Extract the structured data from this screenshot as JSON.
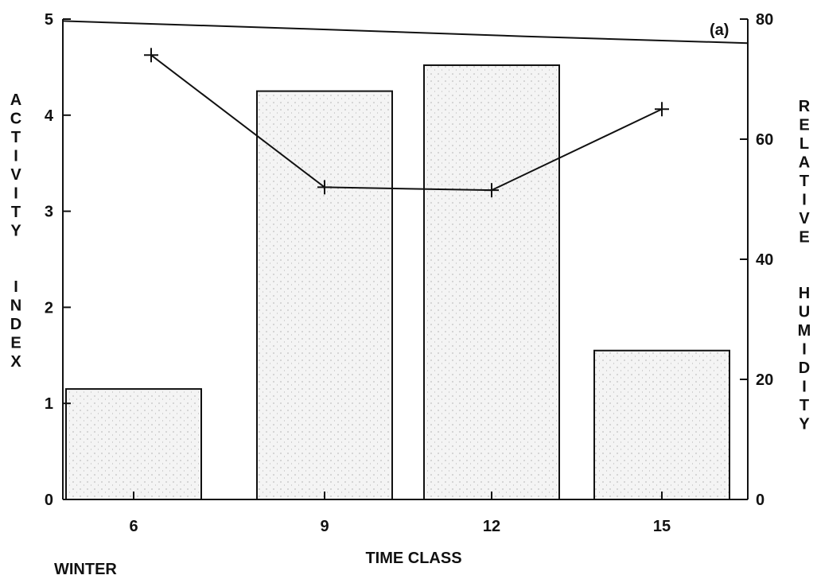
{
  "chart_data": {
    "type": "bar",
    "panel_label": "(a)",
    "season_label": "WINTER",
    "categories": [
      "6",
      "9",
      "12",
      "15"
    ],
    "xlabel": "TIME CLASS",
    "ylabel": "ACTIVITY INDEX",
    "ylabel_words": [
      "ACTIVITY",
      "INDEX"
    ],
    "y2label": "RELATIVE HUMIDITY",
    "y2label_words": [
      "RELATIVE",
      "HUMIDITY"
    ],
    "ylim": [
      0,
      5
    ],
    "yticks": [
      "0",
      "1",
      "2",
      "3",
      "4",
      "5"
    ],
    "y2lim": [
      0,
      80
    ],
    "y2ticks": [
      "0",
      "20",
      "40",
      "60",
      "80"
    ],
    "series": [
      {
        "type": "bar",
        "axis": "left",
        "values": [
          1.15,
          4.25,
          4.52,
          1.55
        ],
        "color": "#f4f4f4"
      },
      {
        "type": "line",
        "axis": "right",
        "marker": "plus",
        "values": [
          74,
          52,
          51.5,
          65
        ],
        "color": "#111111"
      },
      {
        "type": "line",
        "axis": "left",
        "values": [
          4.98,
          4.9,
          4.82,
          4.75
        ],
        "color": "#111111"
      }
    ]
  }
}
